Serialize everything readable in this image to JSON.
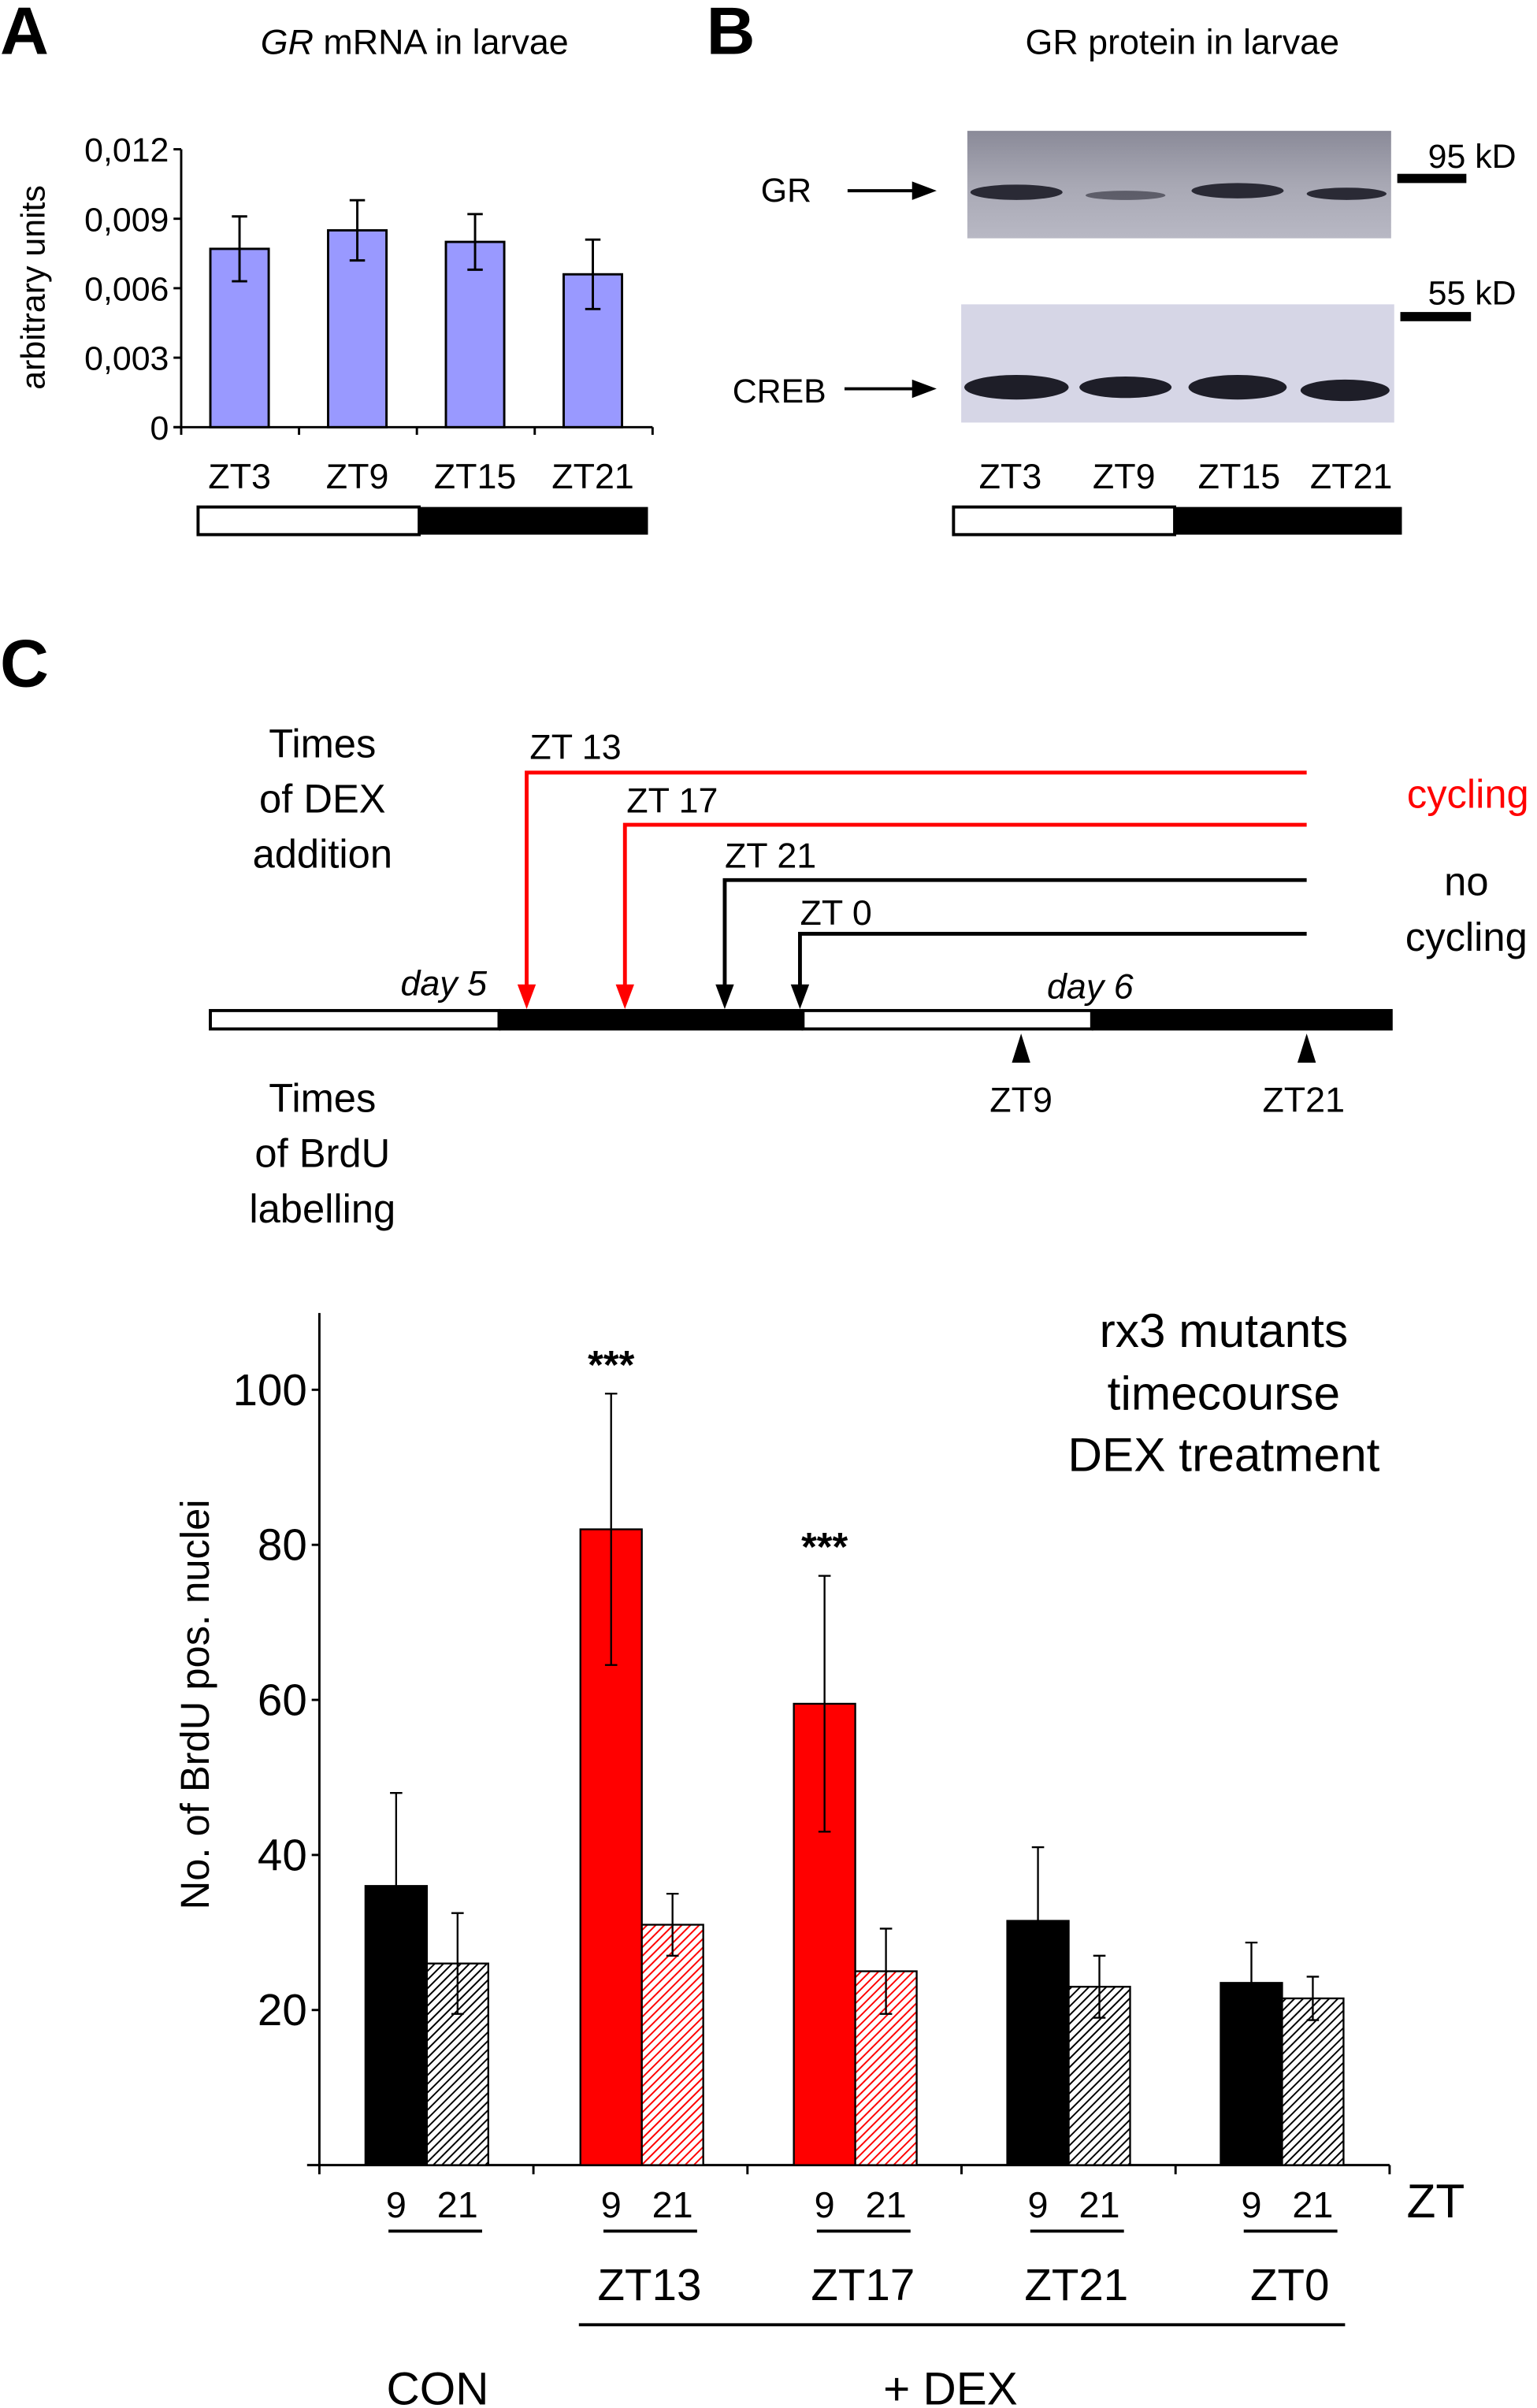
{
  "panel_labels": {
    "a": "A",
    "b": "B",
    "c": "C"
  },
  "chart_data": [
    {
      "type": "bar",
      "title_italic": "GR",
      "title_rest": " mRNA in larvae",
      "ylabel": "arbitrary units",
      "categories": [
        "ZT3",
        "ZT9",
        "ZT15",
        "ZT21"
      ],
      "values": [
        0.0077,
        0.0085,
        0.008,
        0.0066
      ],
      "errors": [
        0.0014,
        0.0013,
        0.0012,
        0.0015
      ],
      "yticks": [
        "0",
        "0,003",
        "0,006",
        "0,009",
        "0,012"
      ],
      "ytick_values": [
        0,
        0.003,
        0.006,
        0.009,
        0.012
      ],
      "ylim": [
        0,
        0.012
      ],
      "bar_color": "#9999ff"
    },
    {
      "type": "bar",
      "title_lines": [
        "rx3 mutants",
        "timecourse",
        "DEX treatment"
      ],
      "ylabel": "No. of BrdU pos. nuclei",
      "xlabel": "ZT",
      "ylim": [
        0,
        110
      ],
      "yticks": [
        "20",
        "40",
        "60",
        "80",
        "100"
      ],
      "ytick_values": [
        20,
        40,
        60,
        80,
        100
      ],
      "groups": [
        {
          "label": "",
          "color": "#000000",
          "values": [
            36,
            26
          ],
          "errors": [
            12,
            6.5
          ],
          "sig": ""
        },
        {
          "label": "ZT13",
          "color": "#ff0000",
          "values": [
            82,
            31
          ],
          "errors": [
            17.5,
            4
          ],
          "sig": "***"
        },
        {
          "label": "ZT17",
          "color": "#ff0000",
          "values": [
            59.5,
            25
          ],
          "errors": [
            16.5,
            5.5
          ],
          "sig": "***"
        },
        {
          "label": "ZT21",
          "color": "#000000",
          "values": [
            31.5,
            23
          ],
          "errors": [
            9.5,
            4
          ],
          "sig": ""
        },
        {
          "label": "ZT0",
          "color": "#000000",
          "values": [
            23.5,
            21.5
          ],
          "errors": [
            5.2,
            2.8
          ],
          "sig": ""
        }
      ],
      "sub_labels": [
        "9",
        "21"
      ],
      "treatment_labels": {
        "control": "CON",
        "dex": "+ DEX"
      }
    }
  ],
  "blot": {
    "title": "GR protein in larvae",
    "gr_label": "GR",
    "creb_label": "CREB",
    "marker_95": "95 kD",
    "marker_55": "55 kD",
    "lanes": [
      "ZT3",
      "ZT9",
      "ZT15",
      "ZT21"
    ]
  },
  "schedule": {
    "dex_title": [
      "Times",
      "of DEX",
      "addition"
    ],
    "brdu_title": [
      "Times",
      "of BrdU",
      "labelling"
    ],
    "additions": [
      {
        "label": "ZT 13",
        "color": "#ff0000"
      },
      {
        "label": "ZT 17",
        "color": "#ff0000"
      },
      {
        "label": "ZT 21",
        "color": "#000000"
      },
      {
        "label": "ZT 0",
        "color": "#000000"
      }
    ],
    "cycling": "cycling",
    "no_cycling": [
      "no",
      "cycling"
    ],
    "day5": "day 5",
    "day6": "day 6",
    "brdu_times": [
      "ZT9",
      "ZT21"
    ]
  }
}
